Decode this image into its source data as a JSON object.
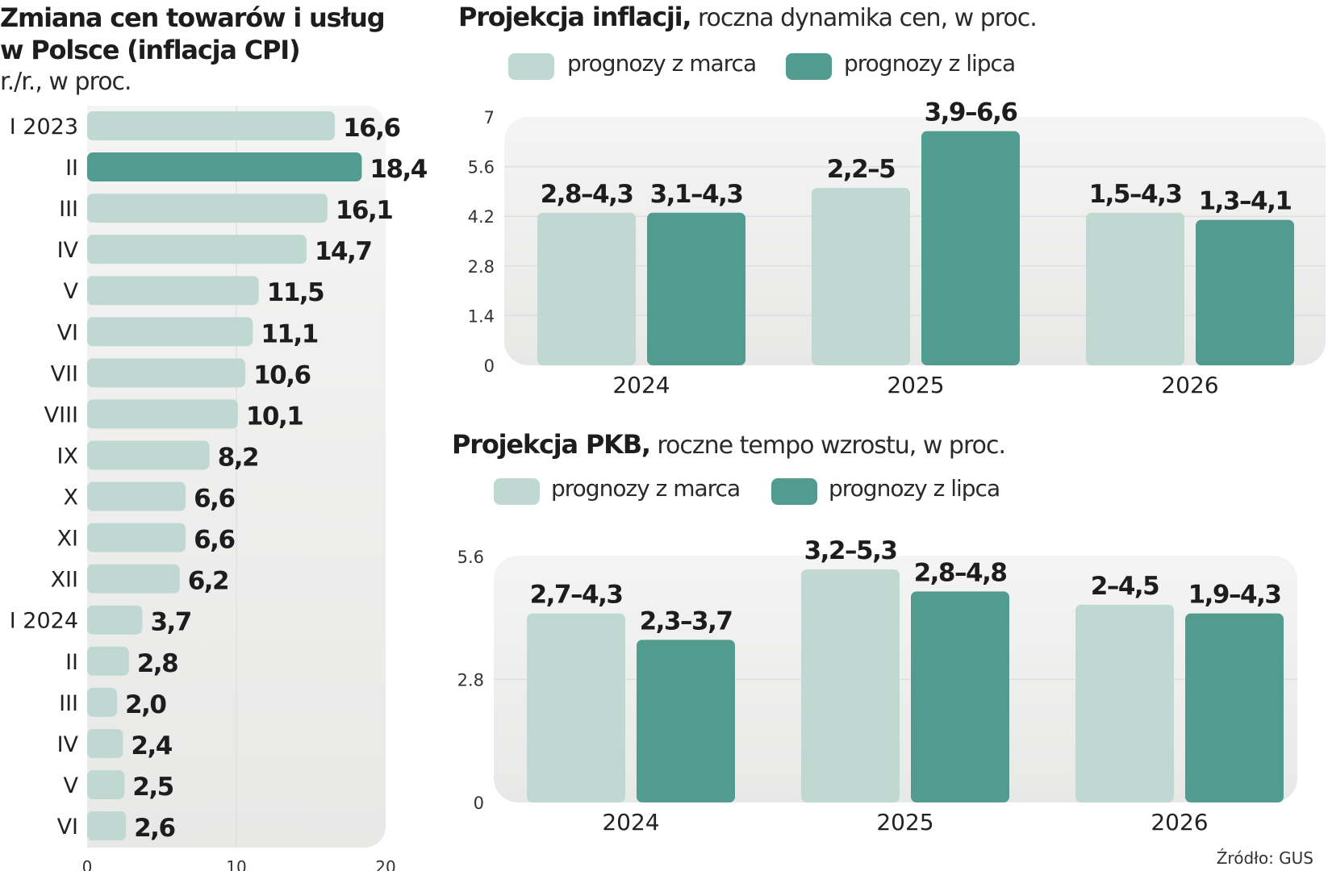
{
  "colors": {
    "light": "#bfd9d2",
    "dark": "#519c8f",
    "panel_top": "#f4f4f4",
    "panel_bottom": "#e8e8e7",
    "grid": "#dedede",
    "text": "#1d1d1f"
  },
  "chart_data": [
    {
      "id": "cpi",
      "type": "bar",
      "orientation": "horizontal",
      "title": "Zmiana cen towarów i usług w Polsce (inflacja CPI)",
      "title_lines": [
        "Zmiana cen towarów i usług",
        "w Polsce (inflacja CPI)"
      ],
      "subtitle": "r./r., w proc.",
      "categories": [
        "I 2023",
        "II",
        "III",
        "IV",
        "V",
        "VI",
        "VII",
        "VIII",
        "IX",
        "X",
        "XI",
        "XII",
        "I 2024",
        "II",
        "III",
        "IV",
        "V",
        "VI"
      ],
      "values": [
        16.6,
        18.4,
        16.1,
        14.7,
        11.5,
        11.1,
        10.6,
        10.1,
        8.2,
        6.6,
        6.6,
        6.2,
        3.7,
        2.8,
        2.0,
        2.4,
        2.5,
        2.6
      ],
      "value_labels": [
        "16,6",
        "18,4",
        "16,1",
        "14,7",
        "11,5",
        "11,1",
        "10,6",
        "10,1",
        "8,2",
        "6,6",
        "6,6",
        "6,2",
        "3,7",
        "2,8",
        "2,0",
        "2,4",
        "2,5",
        "2,6"
      ],
      "highlight_index": 1,
      "xlim": [
        0,
        20
      ],
      "xticks": [
        0,
        10,
        20
      ],
      "xtick_labels": [
        "0",
        "10",
        "20"
      ],
      "grid": "vertical at 10"
    },
    {
      "id": "inflation",
      "type": "bar",
      "orientation": "vertical",
      "title_bold": "Projekcja inflacji,",
      "title_light": " roczna dynamika cen, w proc.",
      "categories": [
        "2024",
        "2025",
        "2026"
      ],
      "series": [
        {
          "name": "prognozy z marca",
          "color": "light",
          "values": [
            4.3,
            5.0,
            4.3
          ],
          "ranges": [
            [
              2.8,
              4.3
            ],
            [
              2.2,
              5.0
            ],
            [
              1.5,
              4.3
            ]
          ],
          "labels": [
            "2,8–4,3",
            "2,2–5",
            "1,5–4,3"
          ]
        },
        {
          "name": "prognozy z lipca",
          "color": "dark",
          "values": [
            4.3,
            6.6,
            4.1
          ],
          "ranges": [
            [
              3.1,
              4.3
            ],
            [
              3.9,
              6.6
            ],
            [
              1.3,
              4.1
            ]
          ],
          "labels": [
            "3,1–4,3",
            "3,9–6,6",
            "1,3–4,1"
          ]
        }
      ],
      "ylim": [
        0,
        7
      ],
      "yticks": [
        0,
        1.4,
        2.8,
        4.2,
        5.6,
        7
      ],
      "ytick_labels": [
        "0",
        "1.4",
        "2.8",
        "4.2",
        "5.6",
        "7"
      ],
      "legend": "top-left",
      "grid": true
    },
    {
      "id": "gdp",
      "type": "bar",
      "orientation": "vertical",
      "title_bold": "Projekcja PKB,",
      "title_light": " roczne tempo wzrostu, w proc.",
      "categories": [
        "2024",
        "2025",
        "2026"
      ],
      "series": [
        {
          "name": "prognozy z marca",
          "color": "light",
          "values": [
            4.3,
            5.3,
            4.5
          ],
          "ranges": [
            [
              2.7,
              4.3
            ],
            [
              3.2,
              5.3
            ],
            [
              2.0,
              4.5
            ]
          ],
          "labels": [
            "2,7–4,3",
            "3,2–5,3",
            "2–4,5"
          ]
        },
        {
          "name": "prognozy z lipca",
          "color": "dark",
          "values": [
            3.7,
            4.8,
            4.3
          ],
          "ranges": [
            [
              2.3,
              3.7
            ],
            [
              2.8,
              4.8
            ],
            [
              1.9,
              4.3
            ]
          ],
          "labels": [
            "2,3–3,7",
            "2,8–4,8",
            "1,9–4,3"
          ]
        }
      ],
      "ylim": [
        0,
        5.6
      ],
      "yticks": [
        0,
        2.8,
        5.6
      ],
      "ytick_labels": [
        "0",
        "2.8",
        "5.6"
      ],
      "legend": "top-left",
      "grid": true
    }
  ],
  "source": "Źródło: GUS"
}
